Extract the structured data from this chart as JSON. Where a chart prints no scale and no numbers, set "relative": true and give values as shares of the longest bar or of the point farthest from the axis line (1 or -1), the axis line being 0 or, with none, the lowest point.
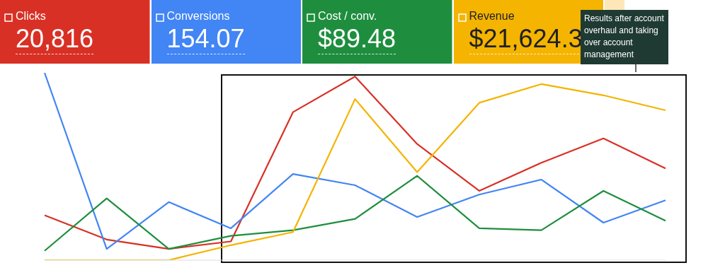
{
  "chart_data": {
    "type": "line",
    "relative": true,
    "categories": [
      null,
      null,
      null,
      null,
      null,
      null,
      null,
      null,
      null,
      null,
      null
    ],
    "series": [
      {
        "name": "Clicks",
        "color": "#d93025",
        "values": [
          0.24,
          0.11,
          0.06,
          0.1,
          0.79,
          0.98,
          0.62,
          0.37,
          0.52,
          0.65,
          0.49
        ]
      },
      {
        "name": "Conversions",
        "color": "#4285f4",
        "values": [
          1,
          0.06,
          0.31,
          0.17,
          0.46,
          0.4,
          0.23,
          0.35,
          0.43,
          0.2,
          0.32
        ]
      },
      {
        "name": "Cost / conv.",
        "color": "#1e8e3e",
        "values": [
          0.05,
          0.33,
          0.06,
          0.13,
          0.16,
          0.22,
          0.45,
          0.17,
          0.16,
          0.37,
          0.21
        ]
      },
      {
        "name": "Revenue",
        "color": "#f4b400",
        "values": [
          0,
          0,
          0,
          0.08,
          0.15,
          0.86,
          0.47,
          0.84,
          0.94,
          0.88,
          0.8
        ]
      }
    ],
    "annotations": [
      "20,816",
      "154.07",
      "$89.48",
      "$21,624.3",
      "Results after account overhaul and taking over account management"
    ],
    "marker": "none",
    "line_style": "solid",
    "legend": "top"
  }
}
